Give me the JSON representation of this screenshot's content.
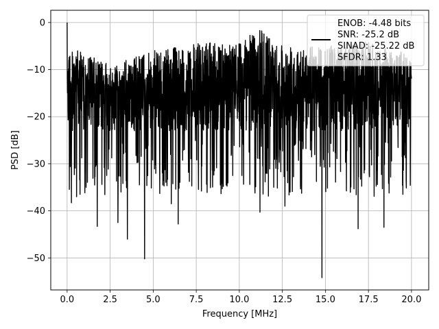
{
  "chart_data": {
    "type": "line",
    "xlabel": "Frequency [MHz]",
    "ylabel": "PSD [dB]",
    "xlim": [
      -0.95,
      21.0
    ],
    "ylim": [
      -56.8,
      2.6
    ],
    "x_ticks": [
      0.0,
      2.5,
      5.0,
      7.5,
      10.0,
      12.5,
      15.0,
      17.5,
      20.0
    ],
    "x_tick_labels": [
      "0.0",
      "2.5",
      "5.0",
      "7.5",
      "10.0",
      "12.5",
      "15.0",
      "17.5",
      "20.0"
    ],
    "y_ticks": [
      0,
      -10,
      -20,
      -30,
      -40,
      -50
    ],
    "y_tick_labels": [
      "0",
      "−10",
      "−20",
      "−30",
      "−40",
      "−50"
    ],
    "grid": true,
    "legend_position": "upper-right",
    "line_color": "#000000",
    "legend": {
      "entries": [
        "ENOB: -4.48 bits",
        "SNR: -25.2 dB",
        "SINAD: -25.22 dB",
        "SFDR: 1.33"
      ]
    },
    "series": [
      {
        "style": "noise-like dense spectrum",
        "peak": {
          "x": 0.0,
          "y": 0.0
        },
        "dips": [
          {
            "x": 0.25,
            "y": -38.3
          },
          {
            "x": 0.55,
            "y": -37.0
          },
          {
            "x": 0.75,
            "y": -36.5
          },
          {
            "x": 1.1,
            "y": -35.0
          },
          {
            "x": 1.75,
            "y": -43.3
          },
          {
            "x": 2.3,
            "y": -32.5
          },
          {
            "x": 2.95,
            "y": -42.5
          },
          {
            "x": 3.5,
            "y": -46.0
          },
          {
            "x": 4.5,
            "y": -50.2
          },
          {
            "x": 5.6,
            "y": -33.5
          },
          {
            "x": 6.05,
            "y": -38.5
          },
          {
            "x": 6.45,
            "y": -42.8
          },
          {
            "x": 7.8,
            "y": -35.8
          },
          {
            "x": 8.9,
            "y": -34.5
          },
          {
            "x": 10.15,
            "y": -32.5
          },
          {
            "x": 10.9,
            "y": -34.8
          },
          {
            "x": 11.2,
            "y": -40.3
          },
          {
            "x": 12.0,
            "y": -35.0
          },
          {
            "x": 12.65,
            "y": -39.0
          },
          {
            "x": 14.8,
            "y": -54.2
          },
          {
            "x": 16.9,
            "y": -43.8
          },
          {
            "x": 18.4,
            "y": -43.5
          },
          {
            "x": 19.5,
            "y": -36.5
          }
        ],
        "upper_envelope": [
          {
            "x": 0.0,
            "y": -5.0
          },
          {
            "x": 2.5,
            "y": -9.0
          },
          {
            "x": 5.0,
            "y": -6.0
          },
          {
            "x": 7.5,
            "y": -4.5
          },
          {
            "x": 10.0,
            "y": -4.0
          },
          {
            "x": 11.2,
            "y": -1.5
          },
          {
            "x": 12.5,
            "y": -4.5
          },
          {
            "x": 15.0,
            "y": -5.0
          },
          {
            "x": 17.5,
            "y": -4.0
          },
          {
            "x": 20.0,
            "y": -7.0
          }
        ],
        "median_level": -17
      }
    ]
  }
}
